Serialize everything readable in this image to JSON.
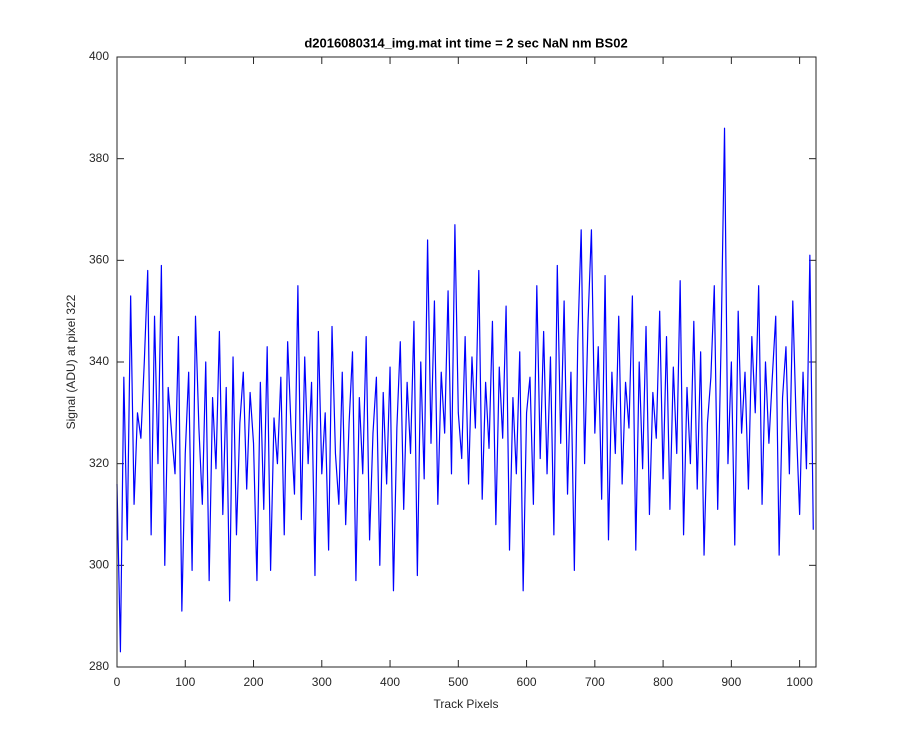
{
  "chart_data": {
    "type": "line",
    "title": "d2016080314_img.mat int time = 2 sec  NaN nm BS02",
    "x_label": "Track Pixels",
    "y_label": "Signal (ADU) at pixel 322",
    "color": "#0000ff",
    "xlim": [
      0,
      1024
    ],
    "xticks": [
      0,
      100,
      200,
      300,
      400,
      500,
      600,
      700,
      800,
      900,
      1000
    ],
    "ylim": [
      280,
      400
    ],
    "yticks": [
      280,
      300,
      320,
      340,
      360,
      380,
      400
    ],
    "grid": false,
    "x": [
      0,
      5,
      10,
      15,
      20,
      25,
      30,
      35,
      40,
      45,
      50,
      55,
      60,
      65,
      70,
      75,
      80,
      85,
      90,
      95,
      100,
      105,
      110,
      115,
      120,
      125,
      130,
      135,
      140,
      145,
      150,
      155,
      160,
      165,
      170,
      175,
      180,
      185,
      190,
      195,
      200,
      205,
      210,
      215,
      220,
      225,
      230,
      235,
      240,
      245,
      250,
      255,
      260,
      265,
      270,
      275,
      280,
      285,
      290,
      295,
      300,
      305,
      310,
      315,
      320,
      325,
      330,
      335,
      340,
      345,
      350,
      355,
      360,
      365,
      370,
      375,
      380,
      385,
      390,
      395,
      400,
      405,
      410,
      415,
      420,
      425,
      430,
      435,
      440,
      445,
      450,
      455,
      460,
      465,
      470,
      475,
      480,
      485,
      490,
      495,
      500,
      505,
      510,
      515,
      520,
      525,
      530,
      535,
      540,
      545,
      550,
      555,
      560,
      565,
      570,
      575,
      580,
      585,
      590,
      595,
      600,
      605,
      610,
      615,
      620,
      625,
      630,
      635,
      640,
      645,
      650,
      655,
      660,
      665,
      670,
      675,
      680,
      685,
      690,
      695,
      700,
      705,
      710,
      715,
      720,
      725,
      730,
      735,
      740,
      745,
      750,
      755,
      760,
      765,
      770,
      775,
      780,
      785,
      790,
      795,
      800,
      805,
      810,
      815,
      820,
      825,
      830,
      835,
      840,
      845,
      850,
      855,
      860,
      865,
      870,
      875,
      880,
      885,
      890,
      895,
      900,
      905,
      910,
      915,
      920,
      925,
      930,
      935,
      940,
      945,
      950,
      955,
      960,
      965,
      970,
      975,
      980,
      985,
      990,
      995,
      1000,
      1005,
      1010,
      1015,
      1020
    ],
    "values": [
      316,
      283,
      337,
      305,
      353,
      312,
      330,
      325,
      340,
      358,
      306,
      349,
      320,
      359,
      300,
      335,
      326,
      318,
      345,
      291,
      322,
      338,
      299,
      349,
      327,
      312,
      340,
      297,
      333,
      319,
      346,
      310,
      335,
      293,
      341,
      306,
      328,
      338,
      315,
      334,
      324,
      297,
      336,
      311,
      343,
      299,
      329,
      320,
      337,
      306,
      344,
      327,
      314,
      355,
      309,
      341,
      320,
      336,
      298,
      346,
      318,
      330,
      303,
      347,
      322,
      312,
      338,
      308,
      328,
      342,
      297,
      333,
      318,
      345,
      305,
      326,
      337,
      300,
      334,
      316,
      339,
      295,
      327,
      344,
      311,
      336,
      322,
      348,
      298,
      340,
      317,
      364,
      324,
      352,
      312,
      338,
      326,
      354,
      318,
      367,
      330,
      321,
      345,
      316,
      341,
      327,
      358,
      313,
      336,
      323,
      348,
      308,
      339,
      325,
      351,
      303,
      333,
      318,
      342,
      295,
      330,
      337,
      312,
      355,
      321,
      346,
      318,
      341,
      306,
      359,
      324,
      352,
      314,
      338,
      299,
      344,
      366,
      320,
      348,
      366,
      326,
      343,
      313,
      357,
      305,
      338,
      322,
      349,
      316,
      336,
      327,
      353,
      303,
      340,
      319,
      347,
      310,
      334,
      325,
      350,
      317,
      345,
      311,
      339,
      322,
      356,
      306,
      335,
      320,
      348,
      315,
      342,
      302,
      328,
      337,
      355,
      311,
      344,
      386,
      320,
      340,
      304,
      350,
      326,
      338,
      315,
      345,
      330,
      355,
      312,
      340,
      324,
      337,
      349,
      302,
      333,
      343,
      318,
      352,
      328,
      310,
      338,
      319,
      361,
      307
    ]
  }
}
